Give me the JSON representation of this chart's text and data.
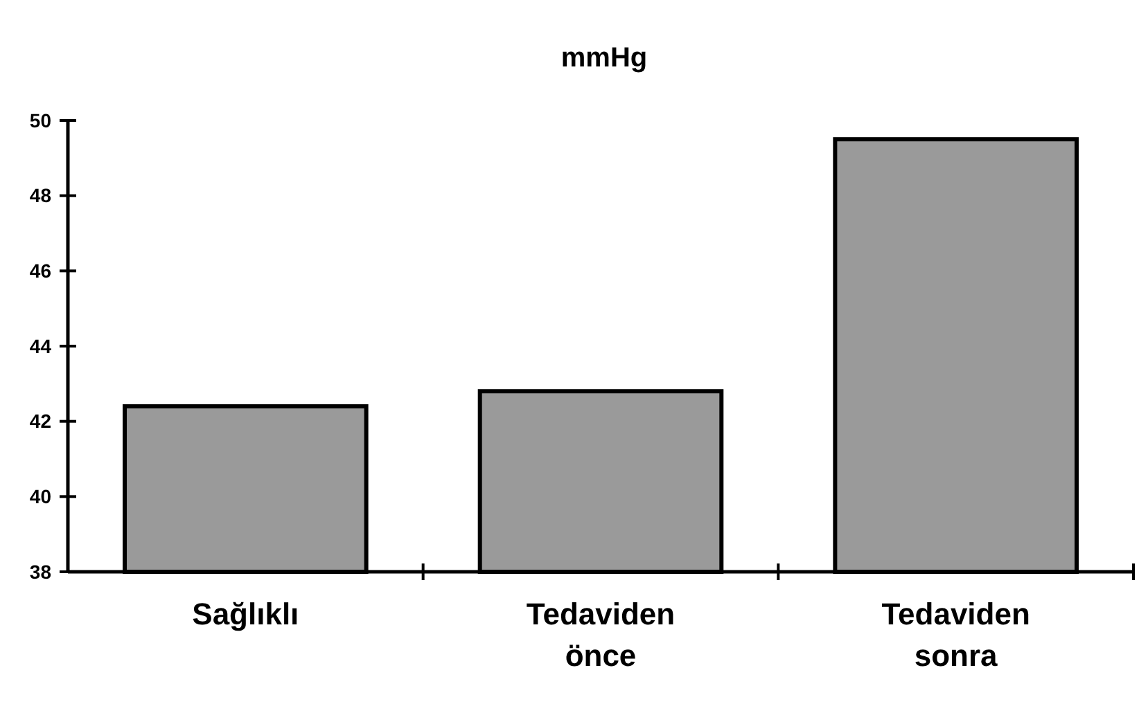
{
  "chart_data": {
    "type": "bar",
    "title": "mmHg",
    "categories": [
      "Sağlıklı",
      "Tedaviden önce",
      "Tedaviden sonra"
    ],
    "values": [
      42.4,
      42.8,
      49.5
    ],
    "color": "#9a9a9a",
    "ylim": [
      38,
      50
    ],
    "yticks": [
      38,
      40,
      42,
      44,
      46,
      48,
      50
    ],
    "grid": false
  }
}
